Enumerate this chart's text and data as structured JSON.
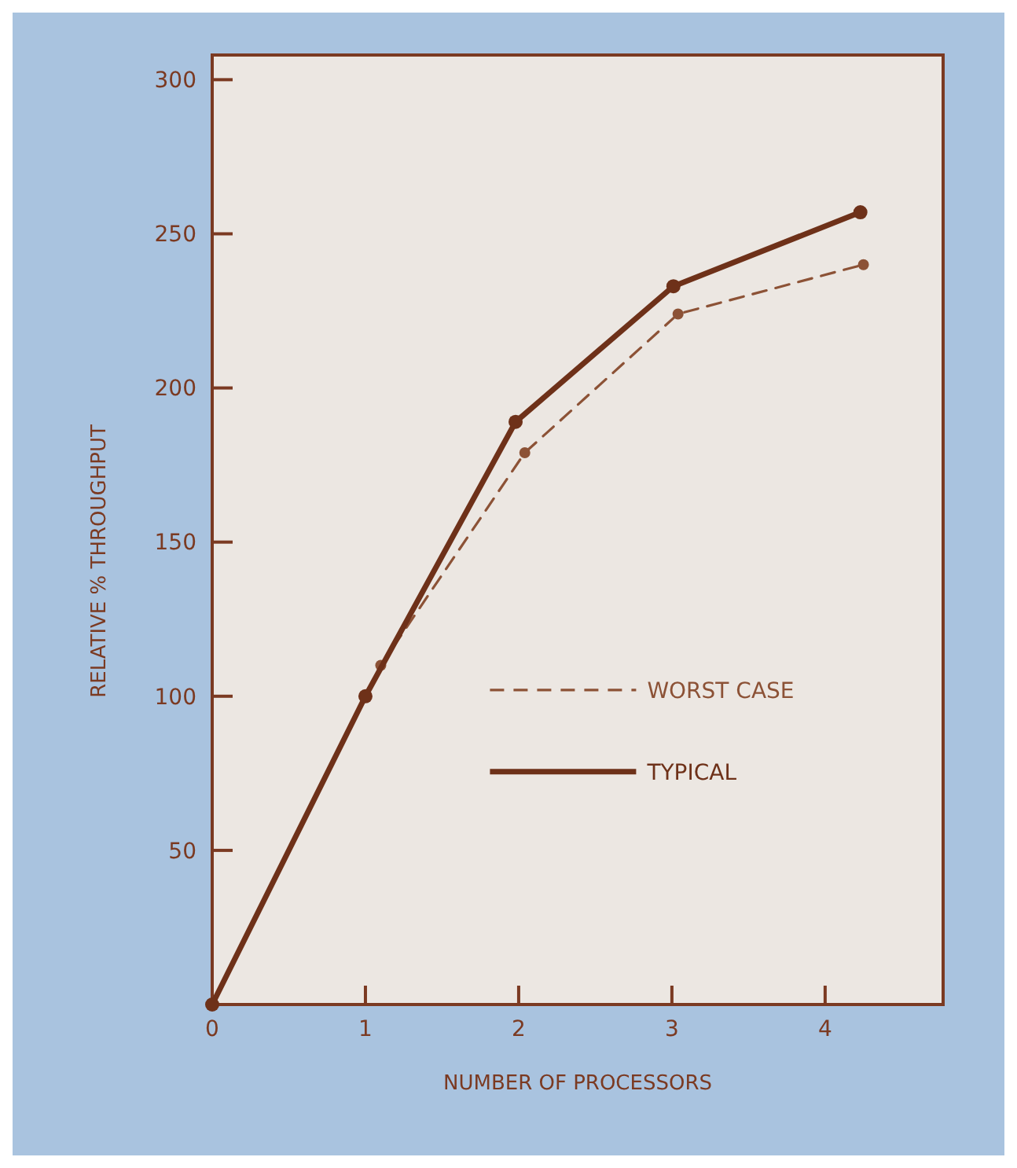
{
  "chart_data": {
    "type": "line",
    "xlabel": "NUMBER OF PROCESSORS",
    "ylabel": "RELATIVE % THROUGHPUT",
    "xlim": [
      0,
      4.77
    ],
    "ylim": [
      0,
      308
    ],
    "xticks": [
      0,
      1,
      2,
      3,
      4
    ],
    "yticks": [
      {
        "value": 0,
        "label": null
      },
      50,
      100,
      150,
      200,
      250,
      300
    ],
    "grid": false,
    "legend": "right",
    "marker": "circle",
    "series": [
      {
        "name": "WORST CASE",
        "color": "#8c5236",
        "line_style": "dashed",
        "x": [
          0,
          1,
          1.1,
          2.04,
          3.04,
          4.25
        ],
        "values": [
          0,
          100,
          110,
          179,
          224,
          240
        ]
      },
      {
        "name": "TYPICAL",
        "color": "#6e3119",
        "line_style": "solid",
        "x": [
          0,
          1,
          1.98,
          3.01,
          4.23
        ],
        "values": [
          0,
          100,
          189,
          233,
          257
        ]
      }
    ]
  }
}
